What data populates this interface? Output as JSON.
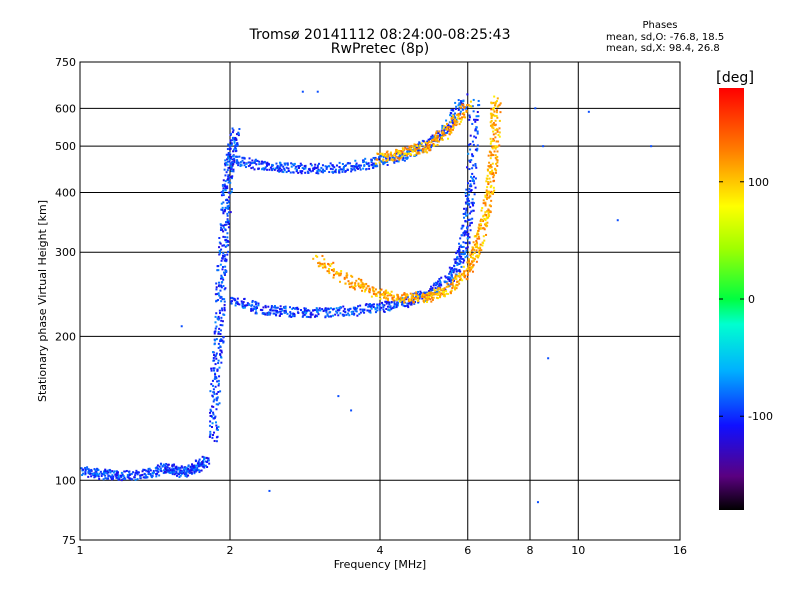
{
  "header": {
    "title_line1": "Tromsø 20141112 08:24:00-08:25:43",
    "title_line2": "RwPretec (8p)",
    "phase_title": "Phases",
    "phase_o": "mean, sd,O: -76.8, 18.5",
    "phase_x": "mean, sd,X:  98.4, 26.8"
  },
  "colorbar": {
    "unit": "deg",
    "range": [
      -180,
      180
    ],
    "ticks": [
      100,
      0,
      -100
    ],
    "tick_labels": [
      "100",
      "0",
      "-100"
    ]
  },
  "chart_data": {
    "type": "scatter",
    "xlabel": "Frequency [MHz]",
    "ylabel": "Stationary phase Virtual Height [km]",
    "xscale": "log",
    "yscale": "log",
    "xlim": [
      1,
      16
    ],
    "ylim": [
      75,
      750
    ],
    "xticks": [
      1,
      2,
      4,
      6,
      8,
      10,
      16
    ],
    "yticks": [
      75,
      100,
      200,
      300,
      400,
      500,
      600,
      750
    ],
    "grid": true,
    "traces": [
      {
        "note": "E/F1 low trace O",
        "x": [
          1.0,
          1.1,
          1.2,
          1.35,
          1.5,
          1.6,
          1.7,
          1.8
        ],
        "y": [
          105,
          103,
          102,
          103,
          106,
          104,
          106,
          110
        ],
        "phase": -95
      },
      {
        "note": "F1 vertical spread",
        "x": [
          1.85,
          1.87,
          1.9,
          1.92,
          1.95,
          1.97,
          2.0,
          2.05
        ],
        "y": [
          120,
          160,
          200,
          260,
          320,
          400,
          470,
          540
        ],
        "phase": -95
      },
      {
        "note": "F2 O trace",
        "x": [
          2.0,
          2.3,
          2.6,
          3.0,
          3.5,
          4.0,
          4.5,
          5.0,
          5.5,
          5.8,
          6.0,
          6.1,
          6.2
        ],
        "y": [
          240,
          228,
          225,
          224,
          226,
          230,
          236,
          245,
          262,
          290,
          340,
          420,
          620
        ],
        "phase": -95
      },
      {
        "note": "F2 X trace",
        "x": [
          3.0,
          3.5,
          4.0,
          4.5,
          5.0,
          5.5,
          6.0,
          6.3,
          6.5,
          6.7,
          6.8,
          6.85
        ],
        "y": [
          290,
          260,
          245,
          240,
          242,
          250,
          275,
          310,
          360,
          430,
          520,
          630
        ],
        "phase": 110
      },
      {
        "note": "second hop O",
        "x": [
          2.0,
          2.3,
          2.6,
          3.0,
          3.5,
          4.0,
          4.5,
          5.0,
          5.5,
          5.9
        ],
        "y": [
          470,
          455,
          450,
          448,
          452,
          465,
          480,
          505,
          550,
          630
        ],
        "phase": -95
      },
      {
        "note": "second hop X",
        "x": [
          4.0,
          4.5,
          5.0,
          5.5,
          6.0
        ],
        "y": [
          470,
          485,
          500,
          540,
          610
        ],
        "phase": 110
      },
      {
        "note": "isolated points",
        "x": [
          2.8,
          3.0,
          3.3,
          3.5,
          8.2,
          8.5,
          8.7,
          10.5,
          12.0,
          14.0,
          1.6,
          2.4,
          8.3
        ],
        "y": [
          650,
          650,
          150,
          140,
          600,
          500,
          180,
          590,
          350,
          500,
          210,
          95,
          90
        ],
        "phase": -90
      }
    ]
  }
}
